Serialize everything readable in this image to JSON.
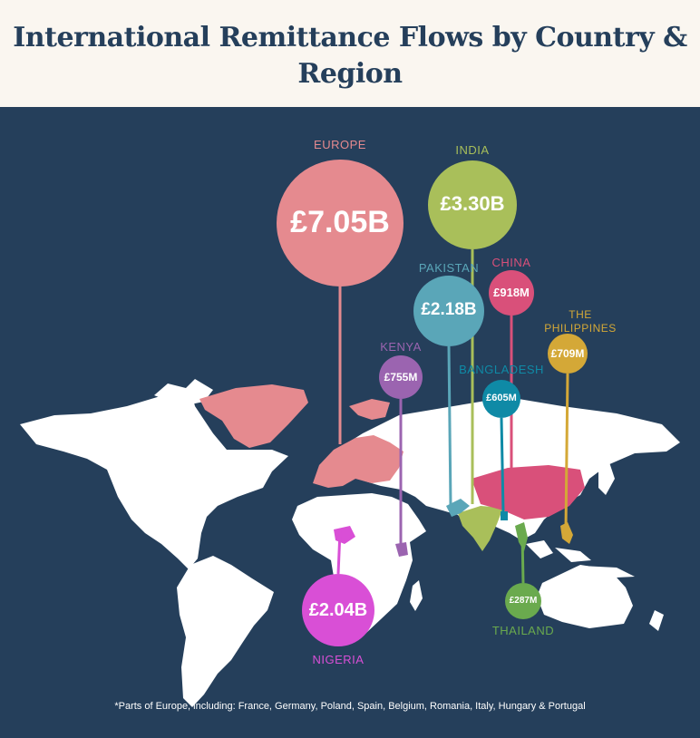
{
  "title": "International Remittance Flows by Country & Region",
  "footnote": "*Parts of Europe, including: France, Germany, Poland, Spain, Belgium, Romania, Italy, Hungary & Portugal",
  "regions": [
    {
      "name": "EUROPE",
      "value_label": "£7.05B",
      "value_gbp_m": 7050,
      "color": "#e58a8f"
    },
    {
      "name": "INDIA",
      "value_label": "£3.30B",
      "value_gbp_m": 3300,
      "color": "#a9bf5a"
    },
    {
      "name": "PAKISTAN",
      "value_label": "£2.18B",
      "value_gbp_m": 2180,
      "color": "#5aa6b8"
    },
    {
      "name": "CHINA",
      "value_label": "£918M",
      "value_gbp_m": 918,
      "color": "#d9507a"
    },
    {
      "name": "THE PHILIPPINES",
      "value_label": "£709M",
      "value_gbp_m": 709,
      "color": "#d4a837"
    },
    {
      "name": "KENYA",
      "value_label": "£755M",
      "value_gbp_m": 755,
      "color": "#9b64b0"
    },
    {
      "name": "BANGLADESH",
      "value_label": "£605M",
      "value_gbp_m": 605,
      "color": "#0f8aa6"
    },
    {
      "name": "NIGERIA",
      "value_label": "£2.04B",
      "value_gbp_m": 2040,
      "color": "#d94fd6"
    },
    {
      "name": "THAILAND",
      "value_label": "£287M",
      "value_gbp_m": 287,
      "color": "#6aaa4e"
    }
  ]
}
